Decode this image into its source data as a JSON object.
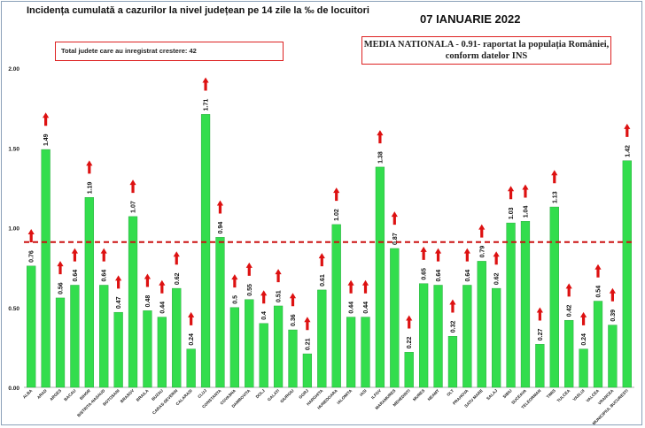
{
  "header": {
    "title": "Incidența cumulată a cazurilor la nivel județean pe 14 zile la ‰ de locuitori",
    "date": "07 IANUARIE 2022",
    "counties_increase": "Total judete care au inregistrat crestere: 42",
    "national_line1": "MEDIA NATIONALA - 0.91-  raportat la populația României,",
    "national_line2": "conform datelor INS"
  },
  "colors": {
    "bar": "#33dd4d",
    "bar_edge": "#1e9e32",
    "arrow": "#dd1111",
    "reference_line": "#cc1111"
  },
  "chart_data": {
    "type": "bar",
    "title": "Incidența cumulată a cazurilor la nivel județean pe 14 zile la ‰ de locuitori",
    "categories": [
      "ALBA",
      "ARAD",
      "ARGES",
      "BACAU",
      "BIHOR",
      "BISTRITA-NASAUD",
      "BOTOSANI",
      "BRASOV",
      "BRAILA",
      "BUZAU",
      "CARAS-SEVERIN",
      "CALARASI",
      "CLUJ",
      "CONSTANTA",
      "COVASNA",
      "DAMBOVITA",
      "DOLJ",
      "GALATI",
      "GIURGIU",
      "GORJ",
      "HARGHITA",
      "HUNEDOARA",
      "IALOMITA",
      "IASI",
      "ILFOV",
      "MARAMURES",
      "MEHEDINTI",
      "MURES",
      "NEAMT",
      "OLT",
      "PRAHOVA",
      "SATU MARE",
      "SALAJ",
      "SIBIU",
      "SUCEAVA",
      "TELEORMAN",
      "TIMIS",
      "TULCEA",
      "VASLUI",
      "VALCEA",
      "VRANCEA",
      "MUNICIPIUL BUCURESTI"
    ],
    "values": [
      0.76,
      1.49,
      0.56,
      0.64,
      1.19,
      0.64,
      0.47,
      1.07,
      0.48,
      0.44,
      0.62,
      0.24,
      1.71,
      0.94,
      0.5,
      0.55,
      0.4,
      0.51,
      0.36,
      0.21,
      0.61,
      1.02,
      0.44,
      0.44,
      1.38,
      0.87,
      0.22,
      0.65,
      0.64,
      0.32,
      0.64,
      0.79,
      0.62,
      1.03,
      1.04,
      0.27,
      1.13,
      0.42,
      0.24,
      0.54,
      0.39,
      1.42
    ],
    "labels": [
      "0.76",
      "1.49",
      "0.56",
      "0.64",
      "1.19",
      "0.64",
      "0.47",
      "1.07",
      "0.48",
      "0.44",
      "0.62",
      "0.24",
      "1.71",
      "0.94",
      "0.5",
      "0.55",
      "0.4",
      "0.51",
      "0.36",
      "0.21",
      "0.61",
      "1.02",
      "0.44",
      "0.44",
      "1.38",
      "0.87",
      "0.22",
      "0.65",
      "0.64",
      "0.32",
      "0.64",
      "0.79",
      "0.62",
      "1.03",
      "1.04",
      "0.27",
      "1.13",
      "0.42",
      "0.24",
      "0.54",
      "0.39",
      "1.42"
    ],
    "increase": [
      true,
      true,
      true,
      true,
      true,
      true,
      true,
      true,
      true,
      true,
      true,
      true,
      true,
      true,
      true,
      true,
      true,
      true,
      true,
      true,
      true,
      true,
      true,
      true,
      true,
      true,
      true,
      true,
      true,
      true,
      true,
      true,
      true,
      true,
      true,
      true,
      true,
      true,
      true,
      true,
      true,
      true
    ],
    "reference_value": 0.91,
    "yticks": [
      "0.00",
      "0.50",
      "1.00",
      "1.50",
      "2.00"
    ],
    "ylim": [
      0,
      2.0
    ],
    "grid": false,
    "legend": "none"
  }
}
